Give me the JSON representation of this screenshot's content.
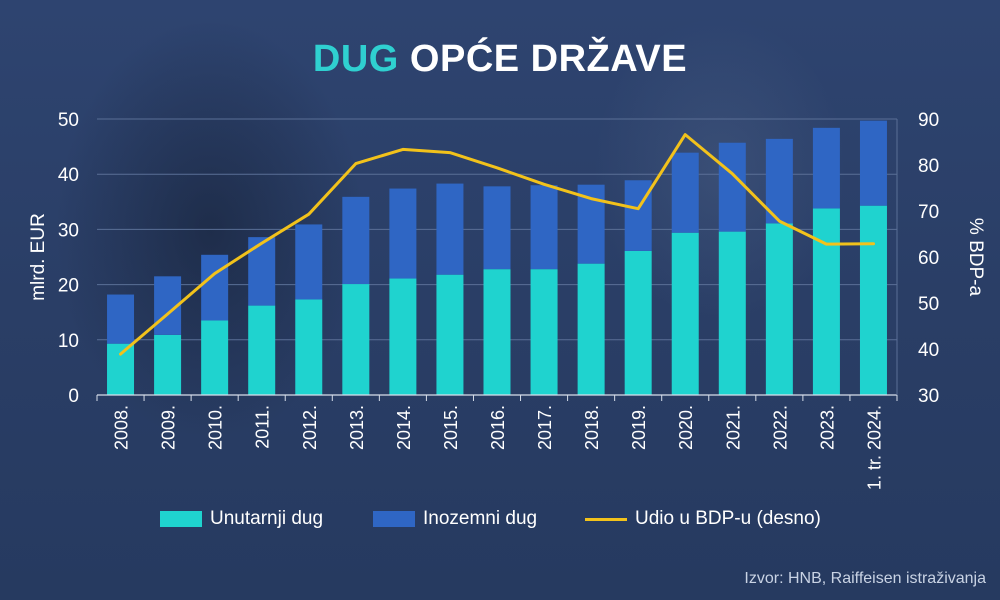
{
  "title": {
    "accent": "DUG",
    "rest": "OPĆE DRŽAVE"
  },
  "legend": {
    "domestic": "Unutarnji dug",
    "foreign": "Inozemni dug",
    "share": "Udio u BDP-u (desno)"
  },
  "source": "Izvor: HNB, Raiffeisen istraživanja",
  "colors": {
    "domestic": "#1fd3cf",
    "foreign": "#2f66c4",
    "line": "#f2c21b",
    "grid": "#5a6f96"
  },
  "chart_data": {
    "type": "bar",
    "stacked": true,
    "categories": [
      "2008.",
      "2009.",
      "2010.",
      "2011.",
      "2012.",
      "2013.",
      "2014.",
      "2015.",
      "2016.",
      "2017.",
      "2018.",
      "2019.",
      "2020.",
      "2021.",
      "2022.",
      "2023.",
      "1. tr. 2024."
    ],
    "series": [
      {
        "name": "Unutarnji dug",
        "type": "bar",
        "axis": "left",
        "values": [
          9.3,
          10.9,
          13.5,
          16.2,
          17.3,
          20.1,
          21.1,
          21.8,
          22.8,
          22.8,
          23.8,
          26.1,
          29.4,
          29.6,
          31.1,
          33.8,
          34.3
        ]
      },
      {
        "name": "Inozemni dug",
        "type": "bar",
        "axis": "left",
        "values": [
          8.9,
          10.6,
          11.9,
          12.4,
          13.6,
          15.8,
          16.3,
          16.5,
          15.0,
          15.2,
          14.3,
          12.8,
          14.5,
          16.1,
          15.3,
          14.6,
          15.4
        ]
      },
      {
        "name": "Udio u BDP-u (desno)",
        "type": "line",
        "axis": "right",
        "values": [
          38.9,
          47.6,
          56.4,
          63.0,
          69.3,
          80.3,
          83.4,
          82.7,
          79.4,
          75.8,
          72.7,
          70.5,
          86.6,
          78.1,
          67.8,
          62.8,
          62.9
        ]
      }
    ],
    "ylabel": "mlrd. EUR",
    "ylim": [
      0,
      50
    ],
    "yticks": [
      0,
      10,
      20,
      30,
      40,
      50
    ],
    "y2label": "% BDP-a",
    "y2lim": [
      30,
      90
    ],
    "y2ticks": [
      30,
      40,
      50,
      60,
      70,
      80,
      90
    ],
    "grid": true,
    "legend_position": "bottom"
  }
}
